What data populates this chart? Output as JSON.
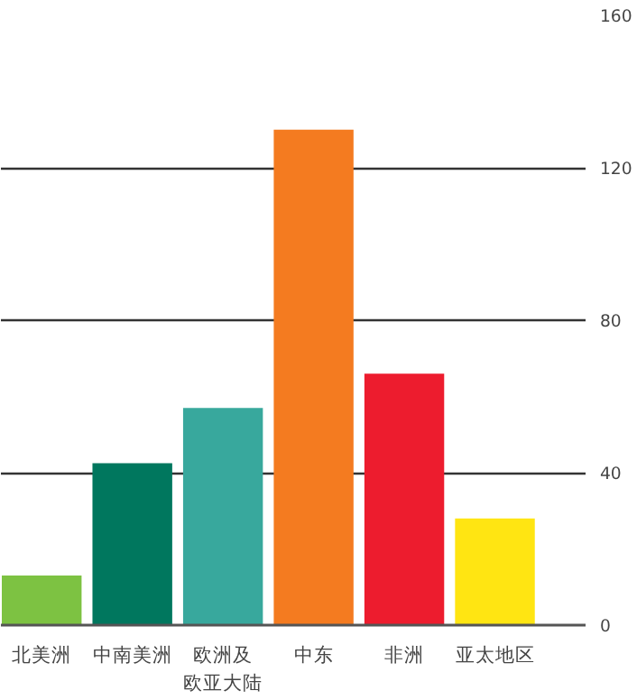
{
  "chart_data": {
    "type": "bar",
    "categories": [
      "北美洲",
      "中南美洲",
      "欧洲及欧亚大陆",
      "中东",
      "非洲",
      "亚太地区"
    ],
    "values": [
      13,
      42.5,
      57,
      130,
      66,
      28
    ],
    "colors": [
      "#7dc242",
      "#00775e",
      "#38a89d",
      "#f47b20",
      "#ed1c2e",
      "#ffe512"
    ],
    "ylim": [
      0,
      160
    ],
    "yticks": [
      0,
      40,
      80,
      120,
      160
    ],
    "grid": "y"
  }
}
